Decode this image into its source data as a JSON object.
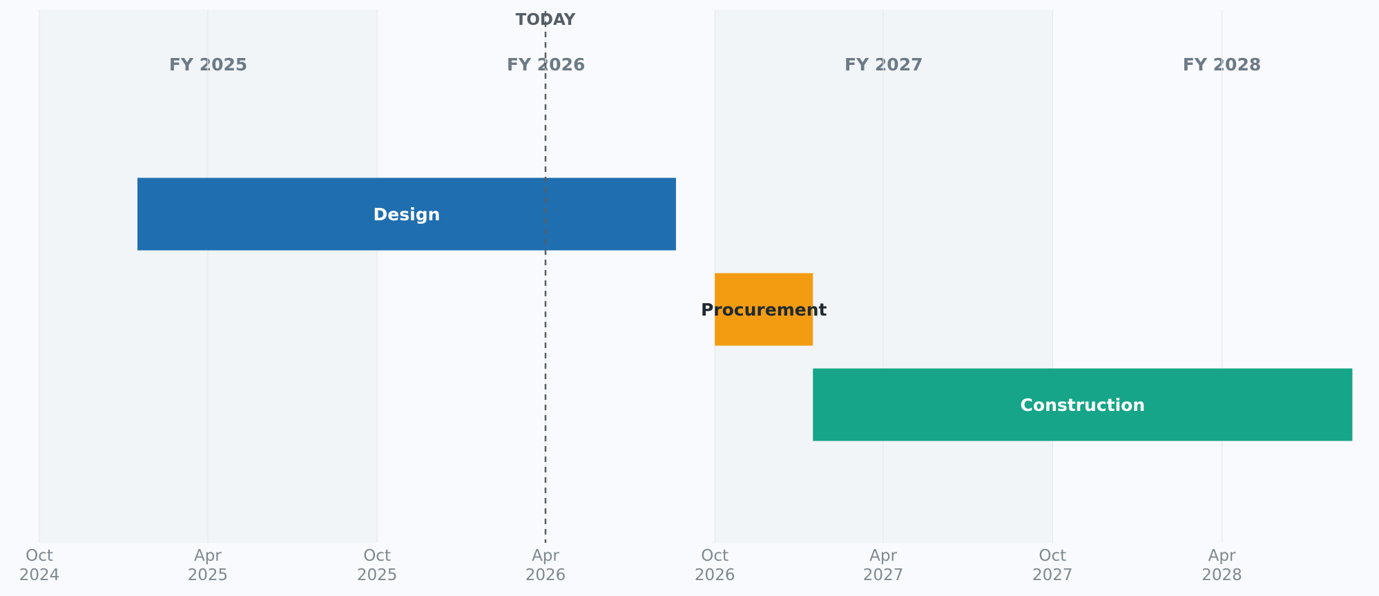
{
  "chart_data": {
    "type": "gantt",
    "title": "",
    "xlabel": "",
    "ylabel": "",
    "x_range": [
      "2024-10-01",
      "2028-08-31"
    ],
    "fiscal_years": [
      {
        "label": "FY 2025",
        "start": "2024-10-01",
        "end": "2025-10-01",
        "shaded": true
      },
      {
        "label": "FY 2026",
        "start": "2025-10-01",
        "end": "2026-10-01",
        "shaded": false
      },
      {
        "label": "FY 2027",
        "start": "2026-10-01",
        "end": "2027-10-01",
        "shaded": true
      },
      {
        "label": "FY 2028",
        "start": "2027-10-01",
        "end": "2028-10-01",
        "shaded": false
      }
    ],
    "x_ticks": [
      {
        "date": "2024-10-01",
        "line1": "Oct",
        "line2": "2024"
      },
      {
        "date": "2025-04-01",
        "line1": "Apr",
        "line2": "2025"
      },
      {
        "date": "2025-10-01",
        "line1": "Oct",
        "line2": "2025"
      },
      {
        "date": "2026-04-01",
        "line1": "Apr",
        "line2": "2026"
      },
      {
        "date": "2026-10-01",
        "line1": "Oct",
        "line2": "2026"
      },
      {
        "date": "2027-04-01",
        "line1": "Apr",
        "line2": "2027"
      },
      {
        "date": "2027-10-01",
        "line1": "Oct",
        "line2": "2027"
      },
      {
        "date": "2028-04-01",
        "line1": "Apr",
        "line2": "2028"
      }
    ],
    "tasks": [
      {
        "name": "Design",
        "start": "2025-01-15",
        "end": "2026-08-20",
        "color": "#1f6eb0",
        "label_color": "#ffffff"
      },
      {
        "name": "Procurement",
        "start": "2026-10-01",
        "end": "2027-01-15",
        "color": "#f39c12",
        "label_color": "#1f2a30"
      },
      {
        "name": "Construction",
        "start": "2027-01-15",
        "end": "2028-08-20",
        "color": "#17a589",
        "label_color": "#ffffff"
      }
    ],
    "today": {
      "label": "TODAY",
      "date": "2026-04-01"
    },
    "grid": true,
    "colors": {
      "background": "#f9fafd",
      "fy_shade": "#f1f5f8",
      "grid": "#e6eaee",
      "fy_label": "#6c7a86",
      "tick_label": "#7e8891",
      "today_line": "#555d66",
      "today_label": "#555d66"
    }
  }
}
